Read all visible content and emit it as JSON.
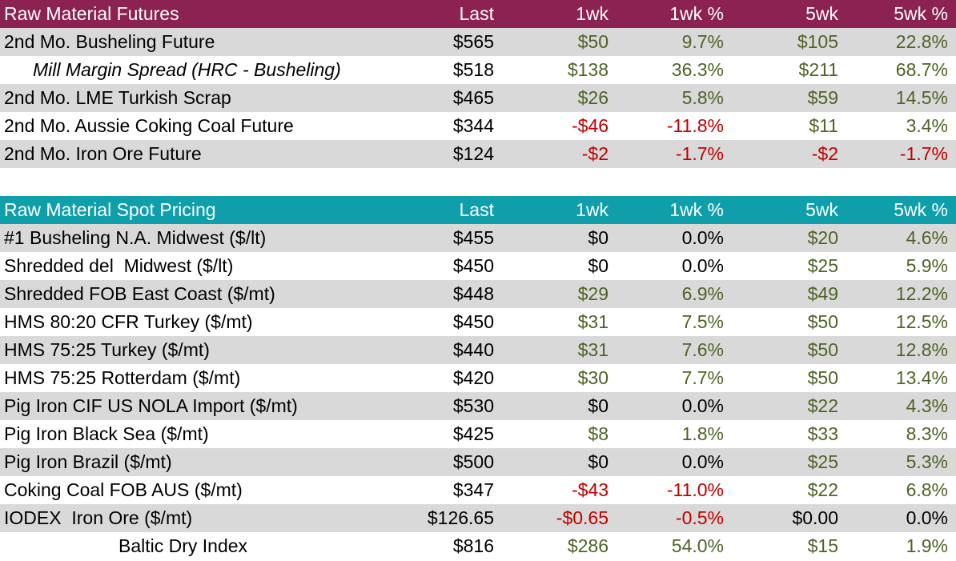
{
  "columns": {
    "last": "Last",
    "w1": "1wk",
    "w1p": "1wk %",
    "w5": "5wk",
    "w5p": "5wk %"
  },
  "futures": {
    "title": "Raw Material Futures",
    "rows": [
      {
        "name": "2nd Mo. Busheling Future",
        "last": "$565",
        "w1": "$50",
        "w1p": "9.7%",
        "w5": "$105",
        "w5p": "22.8%"
      },
      {
        "name": "Mill Margin Spread (HRC - Busheling)",
        "last": "$518",
        "w1": "$138",
        "w1p": "36.3%",
        "w5": "$211",
        "w5p": "68.7%"
      },
      {
        "name": "2nd Mo. LME Turkish Scrap",
        "last": "$465",
        "w1": "$26",
        "w1p": "5.8%",
        "w5": "$59",
        "w5p": "14.5%"
      },
      {
        "name": "2nd Mo. Aussie Coking Coal Future",
        "last": "$344",
        "w1": "-$46",
        "w1p": "-11.8%",
        "w5": "$11",
        "w5p": "3.4%"
      },
      {
        "name": "2nd Mo. Iron Ore Future",
        "last": "$124",
        "w1": "-$2",
        "w1p": "-1.7%",
        "w5": "-$2",
        "w5p": "-1.7%"
      }
    ]
  },
  "spot": {
    "title": "Raw Material Spot Pricing",
    "rows": [
      {
        "name": "#1 Busheling N.A. Midwest ($/lt)",
        "last": "$455",
        "w1": "$0",
        "w1p": "0.0%",
        "w5": "$20",
        "w5p": "4.6%"
      },
      {
        "name": "Shredded del  Midwest ($/lt)",
        "last": "$450",
        "w1": "$0",
        "w1p": "0.0%",
        "w5": "$25",
        "w5p": "5.9%"
      },
      {
        "name": "Shredded FOB East Coast ($/mt)",
        "last": "$448",
        "w1": "$29",
        "w1p": "6.9%",
        "w5": "$49",
        "w5p": "12.2%"
      },
      {
        "name": "HMS 80:20 CFR Turkey ($/mt)",
        "last": "$450",
        "w1": "$31",
        "w1p": "7.5%",
        "w5": "$50",
        "w5p": "12.5%"
      },
      {
        "name": "HMS 75:25 Turkey ($/mt)",
        "last": "$440",
        "w1": "$31",
        "w1p": "7.6%",
        "w5": "$50",
        "w5p": "12.8%"
      },
      {
        "name": "HMS 75:25 Rotterdam ($/mt)",
        "last": "$420",
        "w1": "$30",
        "w1p": "7.7%",
        "w5": "$50",
        "w5p": "13.4%"
      },
      {
        "name": "Pig Iron CIF US NOLA Import ($/mt)",
        "last": "$530",
        "w1": "$0",
        "w1p": "0.0%",
        "w5": "$22",
        "w5p": "4.3%"
      },
      {
        "name": "Pig Iron Black Sea ($/mt)",
        "last": "$425",
        "w1": "$8",
        "w1p": "1.8%",
        "w5": "$33",
        "w5p": "8.3%"
      },
      {
        "name": "Pig Iron Brazil ($/mt)",
        "last": "$500",
        "w1": "$0",
        "w1p": "0.0%",
        "w5": "$25",
        "w5p": "5.3%"
      },
      {
        "name": "Coking Coal FOB AUS ($/mt)",
        "last": "$347",
        "w1": "-$43",
        "w1p": "-11.0%",
        "w5": "$22",
        "w5p": "6.8%"
      },
      {
        "name": "IODEX  Iron Ore ($/mt)",
        "last": "$126.65",
        "w1": "-$0.65",
        "w1p": "-0.5%",
        "w5": "$0.00",
        "w5p": "0.0%"
      },
      {
        "name": "Baltic Dry Index",
        "last": "$816",
        "w1": "$286",
        "w1p": "54.0%",
        "w5": "$15",
        "w5p": "1.9%"
      }
    ]
  },
  "colors": {
    "futures_header": "#8b2252",
    "spot_header": "#0f9fab",
    "row_shade": "#d9d9d9",
    "positive": "#4f6228",
    "negative": "#c00000"
  }
}
